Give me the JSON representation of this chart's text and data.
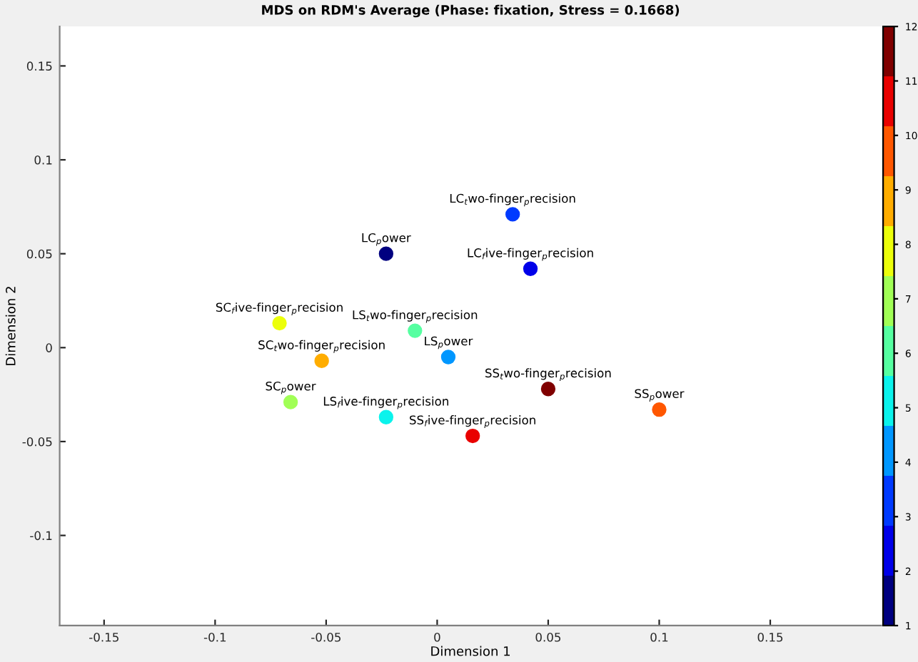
{
  "chart_data": {
    "type": "scatter",
    "title": "MDS on RDM's Average (Phase: fixation, Stress = 0.1668)",
    "xlabel": "Dimension 1",
    "ylabel": "Dimension 2",
    "x": [
      -0.023,
      0.034,
      0.042,
      -0.071,
      -0.052,
      -0.066,
      -0.01,
      0.005,
      -0.023,
      0.05,
      0.1,
      0.016
    ],
    "values": [
      0.05,
      0.071,
      0.042,
      0.013,
      -0.007,
      -0.029,
      0.009,
      -0.005,
      -0.037,
      -0.022,
      -0.033,
      -0.047
    ],
    "cvalues": [
      1,
      3,
      2,
      8,
      9,
      7,
      6,
      4,
      5,
      12,
      10,
      11
    ],
    "clim": [
      1,
      12
    ],
    "cticks": [
      1,
      2,
      3,
      4,
      5,
      6,
      7,
      8,
      9,
      10,
      11,
      12
    ],
    "marker": "circle",
    "xlim": [
      -0.17,
      0.2
    ],
    "ylim": [
      -0.148,
      0.171
    ],
    "xticks": [
      -0.15,
      -0.1,
      -0.05,
      0,
      0.05,
      0.1,
      0.15
    ],
    "yticks": [
      -0.1,
      -0.05,
      0,
      0.05,
      0.1,
      0.15
    ],
    "grid": false,
    "annotations": [
      {
        "text": "LC$_{p}$ower",
        "x": -0.023,
        "y": 0.05
      },
      {
        "text": "LC$_{t}$wo-finger$_{p}$recision",
        "x": 0.034,
        "y": 0.071
      },
      {
        "text": "LC$_{f}$ive-finger$_{p}$recision",
        "x": 0.042,
        "y": 0.042
      },
      {
        "text": "SC$_{f}$ive-finger$_{p}$recision",
        "x": -0.071,
        "y": 0.013
      },
      {
        "text": "SC$_{t}$wo-finger$_{p}$recision",
        "x": -0.052,
        "y": -0.007
      },
      {
        "text": "SC$_{p}$ower",
        "x": -0.066,
        "y": -0.029
      },
      {
        "text": "LS$_{t}$wo-finger$_{p}$recision",
        "x": -0.01,
        "y": 0.009
      },
      {
        "text": "LS$_{p}$ower",
        "x": 0.005,
        "y": -0.005
      },
      {
        "text": "LS$_{f}$ive-finger$_{p}$recision",
        "x": -0.023,
        "y": -0.037
      },
      {
        "text": "SS$_{t}$wo-finger$_{p}$recision",
        "x": 0.05,
        "y": -0.022
      },
      {
        "text": "SS$_{p}$ower",
        "x": 0.1,
        "y": -0.033
      },
      {
        "text": "SS$_{f}$ive-finger$_{p}$recision",
        "x": 0.016,
        "y": -0.047
      }
    ]
  }
}
